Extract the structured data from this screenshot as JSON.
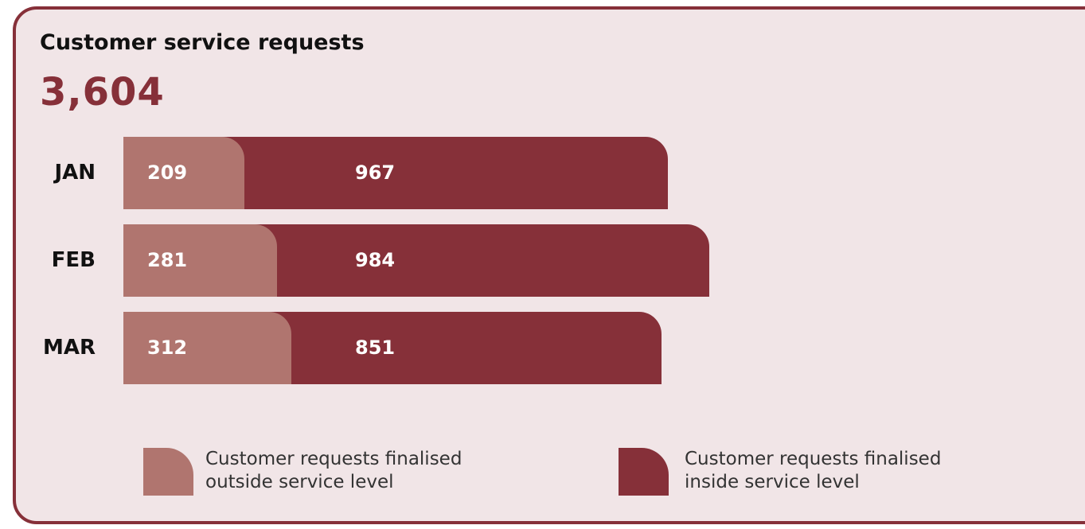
{
  "chart_data": {
    "type": "bar",
    "orientation": "horizontal",
    "stacked": true,
    "title": "Customer service requests",
    "total": "3,604",
    "categories": [
      "JAN",
      "FEB",
      "MAR"
    ],
    "series": [
      {
        "name": "Customer requests finalised outside service level",
        "values": [
          209,
          281,
          312
        ],
        "color": "#b0756f"
      },
      {
        "name": "Customer requests finalised inside service level",
        "values": [
          967,
          984,
          851
        ],
        "color": "#863039"
      }
    ],
    "legend_position": "bottom",
    "grid": false
  },
  "legend": [
    {
      "line1": "Customer requests finalised",
      "line2": "outside service level"
    },
    {
      "line1": "Customer requests finalised",
      "line2": "inside service level"
    }
  ],
  "colors": {
    "outside": "#b0756f",
    "inside": "#863039",
    "background": "#f1e5e7",
    "border": "#863039"
  }
}
